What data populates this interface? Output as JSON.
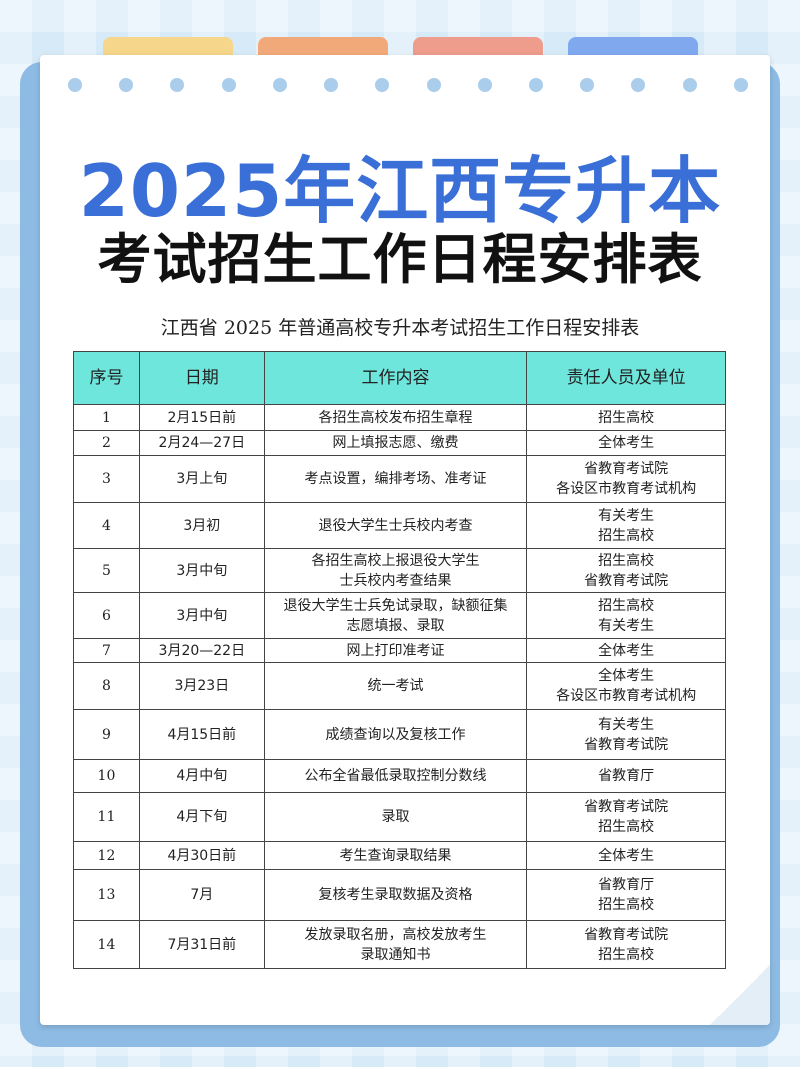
{
  "title_line1": "2025年江西专升本",
  "title_line2": "考试招生工作日程安排表",
  "subtitle": "江西省 2025 年普通高校专升本考试招生工作日程安排表",
  "colors": {
    "title_blue": "#3a6fd8",
    "header_cyan": "#6ee6dc",
    "tabs": [
      "#f5d68a",
      "#f2a97a",
      "#ee9c8c",
      "#7fa8ef"
    ]
  },
  "table": {
    "headers": [
      "序号",
      "日期",
      "工作内容",
      "责任人员及单位"
    ],
    "rows": [
      {
        "no": "1",
        "date": "2月15日前",
        "task": "各招生高校发布招生章程",
        "owner": "招生高校"
      },
      {
        "no": "2",
        "date": "2月24—27日",
        "task": "网上填报志愿、缴费",
        "owner": "全体考生"
      },
      {
        "no": "3",
        "date": "3月上旬",
        "task": "考点设置，编排考场、准考证",
        "owner": "省教育考试院\n各设区市教育考试机构"
      },
      {
        "no": "4",
        "date": "3月初",
        "task": "退役大学生士兵校内考查",
        "owner": "有关考生\n招生高校"
      },
      {
        "no": "5",
        "date": "3月中旬",
        "task": "各招生高校上报退役大学生\n士兵校内考查结果",
        "owner": "招生高校\n省教育考试院"
      },
      {
        "no": "6",
        "date": "3月中旬",
        "task": "退役大学生士兵免试录取，缺额征集\n志愿填报、录取",
        "owner": "招生高校\n有关考生"
      },
      {
        "no": "7",
        "date": "3月20—22日",
        "task": "网上打印准考证",
        "owner": "全体考生"
      },
      {
        "no": "8",
        "date": "3月23日",
        "task": "统一考试",
        "owner": "全体考生\n各设区市教育考试机构"
      },
      {
        "no": "9",
        "date": "4月15日前",
        "task": "成绩查询以及复核工作",
        "owner": "有关考生\n省教育考试院"
      },
      {
        "no": "10",
        "date": "4月中旬",
        "task": "公布全省最低录取控制分数线",
        "owner": "省教育厅"
      },
      {
        "no": "11",
        "date": "4月下旬",
        "task": "录取",
        "owner": "省教育考试院\n招生高校"
      },
      {
        "no": "12",
        "date": "4月30日前",
        "task": "考生查询录取结果",
        "owner": "全体考生"
      },
      {
        "no": "13",
        "date": "7月",
        "task": "复核考生录取数据及资格",
        "owner": "省教育厅\n招生高校"
      },
      {
        "no": "14",
        "date": "7月31日前",
        "task": "发放录取名册，高校发放考生\n录取通知书",
        "owner": "省教育考试院\n招生高校"
      }
    ]
  }
}
